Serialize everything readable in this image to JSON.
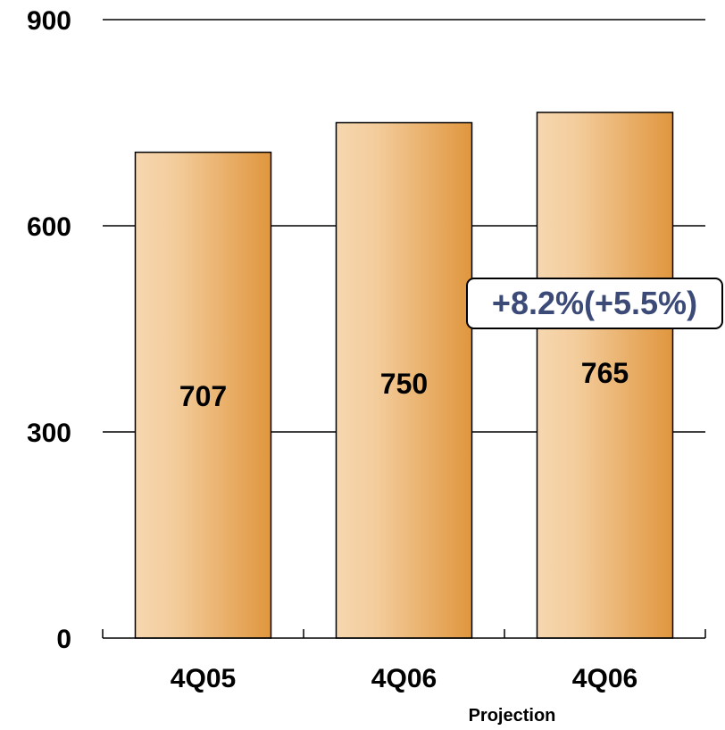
{
  "chart_data": {
    "type": "bar",
    "categories": [
      "4Q05",
      "4Q06",
      "4Q06"
    ],
    "values": [
      707,
      750,
      765
    ],
    "value_labels": [
      "707",
      "750",
      "765"
    ],
    "category_sublabels": [
      "",
      "",
      "Projection"
    ],
    "yticks": [
      0,
      300,
      600,
      900
    ],
    "ytick_labels": [
      "0",
      "300",
      "600",
      "900"
    ],
    "ylim": [
      0,
      900
    ],
    "grid": true,
    "title": "",
    "xlabel": "",
    "ylabel": "",
    "bar_color_light": "#f6d7b0",
    "bar_color_dark": "#e0963e",
    "annotation": {
      "text": "+8.2%(+5.5%)",
      "color": "#3c4a78"
    }
  }
}
